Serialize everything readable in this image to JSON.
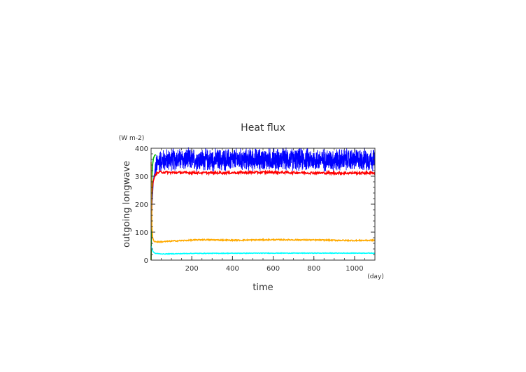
{
  "chart_data": {
    "type": "line",
    "title": "Heat flux",
    "ylabel": "outgoing longwave",
    "yunit": "(W m-2)",
    "xlabel": "time",
    "xunit": "(day)",
    "xlim": [
      0,
      1100
    ],
    "ylim": [
      0,
      400
    ],
    "grid": false,
    "x_ticks": [
      200,
      400,
      600,
      800,
      1000
    ],
    "y_ticks": [
      0,
      100,
      200,
      300,
      400
    ],
    "series": [
      {
        "color": "#0000ff",
        "style": "noisy",
        "values": [
          [
            0,
            0
          ],
          [
            4,
            180
          ],
          [
            8,
            235
          ],
          [
            12,
            290
          ],
          [
            20,
            330
          ],
          [
            40,
            355
          ],
          [
            100,
            360
          ],
          [
            300,
            358
          ],
          [
            600,
            360
          ],
          [
            900,
            358
          ],
          [
            1100,
            360
          ]
        ],
        "noise": 33
      },
      {
        "color": "#ff0000",
        "style": "smooth",
        "values": [
          [
            0,
            0
          ],
          [
            4,
            230
          ],
          [
            10,
            280
          ],
          [
            20,
            305
          ],
          [
            40,
            315
          ],
          [
            100,
            313
          ],
          [
            300,
            312
          ],
          [
            600,
            314
          ],
          [
            900,
            311
          ],
          [
            1100,
            312
          ]
        ],
        "noise": 4
      },
      {
        "color": "#00bb00",
        "style": "smooth",
        "values": [
          [
            0,
            0
          ],
          [
            4,
            300
          ],
          [
            8,
            345
          ],
          [
            12,
            365
          ],
          [
            18,
            375
          ],
          [
            24,
            377
          ]
        ],
        "noise": 0
      },
      {
        "color": "#ffaa00",
        "style": "smooth",
        "values": [
          [
            0,
            350
          ],
          [
            4,
            120
          ],
          [
            8,
            80
          ],
          [
            15,
            66
          ],
          [
            40,
            65
          ],
          [
            100,
            68
          ],
          [
            250,
            73
          ],
          [
            400,
            71
          ],
          [
            600,
            73
          ],
          [
            800,
            72
          ],
          [
            1000,
            70
          ],
          [
            1100,
            71
          ]
        ],
        "noise": 2
      },
      {
        "color": "#00ffff",
        "style": "smooth",
        "values": [
          [
            0,
            50
          ],
          [
            4,
            40
          ],
          [
            10,
            30
          ],
          [
            20,
            24
          ],
          [
            60,
            22
          ],
          [
            200,
            24
          ],
          [
            600,
            25
          ],
          [
            1000,
            25
          ],
          [
            1100,
            25
          ]
        ],
        "noise": 1
      }
    ]
  }
}
